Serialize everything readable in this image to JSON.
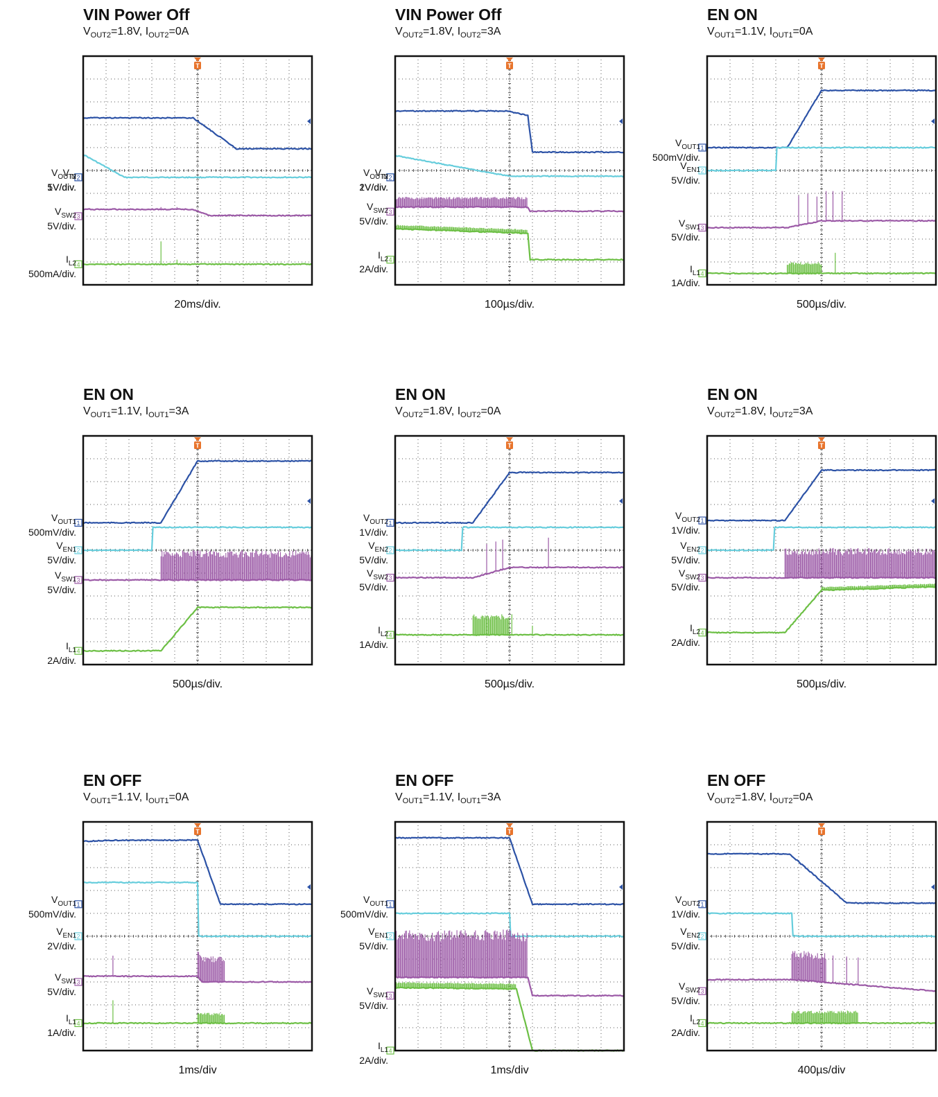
{
  "chart_data": [
    {
      "type": "line",
      "title": "VIN Power Off",
      "subtitle": [
        [
          "V",
          "OUT2",
          "=1.8V, "
        ],
        [
          "I",
          "OUT2",
          "=0A"
        ]
      ],
      "timebase": "20ms/div.",
      "trigger_marker": "T",
      "series": [
        {
          "channel": "1",
          "label": [
            "V",
            "OUT2"
          ],
          "scale": "1V/div.",
          "color": "#66cddc",
          "ref": 5.3,
          "x": [
            0,
            1.8,
            10
          ],
          "y": [
            1.0,
            0.0,
            0.0
          ]
        },
        {
          "channel": "2",
          "label": [
            "V",
            "IN"
          ],
          "scale": "5V/div.",
          "color": "#2c52a6",
          "ref": 5.3,
          "x": [
            0,
            4.8,
            6.7,
            10
          ],
          "y": [
            2.6,
            2.6,
            1.25,
            1.25
          ]
        },
        {
          "channel": "3",
          "label": [
            "V",
            "SW2"
          ],
          "scale": "5V/div.",
          "color": "#9b59a6",
          "ref": 7.0,
          "x": [
            0,
            4.8,
            5.5,
            10
          ],
          "y": [
            0.3,
            0.3,
            0.03,
            0.03
          ],
          "spikes": [
            [
              3.4,
              0.1
            ],
            [
              4.1,
              0.1
            ]
          ]
        },
        {
          "channel": "4",
          "label": [
            "I",
            "L2"
          ],
          "scale": "500mA/div.",
          "color": "#6cbf44",
          "ref": 9.1,
          "x": [
            0,
            10
          ],
          "y": [
            0,
            0
          ],
          "spikes": [
            [
              3.4,
              1.0
            ],
            [
              4.1,
              0.2
            ]
          ]
        }
      ]
    },
    {
      "type": "line",
      "title": "VIN Power Off",
      "subtitle": [
        [
          "V",
          "OUT2",
          "=1.8V, "
        ],
        [
          "I",
          "OUT2",
          "=3A"
        ]
      ],
      "timebase": "100µs/div.",
      "trigger_marker": "T",
      "series": [
        {
          "channel": "1",
          "label": [
            "V",
            "OUT2"
          ],
          "scale": "1V/div.",
          "color": "#66cddc",
          "ref": 5.3,
          "x": [
            0,
            5,
            10
          ],
          "y": [
            0.95,
            0.05,
            0.05
          ]
        },
        {
          "channel": "2",
          "label": [
            "V",
            "IN"
          ],
          "scale": "2V/div.",
          "color": "#2c52a6",
          "ref": 5.3,
          "x": [
            0,
            4.9,
            5.8,
            6,
            10
          ],
          "y": [
            2.9,
            2.9,
            2.7,
            1.1,
            1.1
          ]
        },
        {
          "channel": "3",
          "label": [
            "V",
            "SW2"
          ],
          "scale": "5V/div.",
          "color": "#9b59a6",
          "ref": 6.8,
          "x": [
            0,
            5.8,
            5.9,
            10
          ],
          "y": [
            0.2,
            0.2,
            0.02,
            0.02
          ],
          "noise_band": [
            0,
            5.8,
            0.45
          ]
        },
        {
          "channel": "4",
          "label": [
            "I",
            "L2"
          ],
          "scale": "2A/div.",
          "color": "#6cbf44",
          "ref": 8.9,
          "x": [
            0,
            4.4,
            5.8,
            5.9,
            10
          ],
          "y": [
            1.35,
            1.2,
            1.15,
            0.0,
            0.0
          ],
          "noise_band": [
            0,
            5.8,
            0.18
          ]
        }
      ]
    },
    {
      "type": "line",
      "title": "EN ON",
      "subtitle": [
        [
          "V",
          "OUT1",
          "=1.1V, "
        ],
        [
          "I",
          "OUT1",
          "=0A"
        ]
      ],
      "timebase": "500µs/div.",
      "trigger_marker": "T",
      "series": [
        {
          "channel": "1",
          "label": [
            "V",
            "OUT1"
          ],
          "scale": "500mV/div.",
          "color": "#2c52a6",
          "ref": 4.0,
          "x": [
            0,
            3.5,
            5,
            10
          ],
          "y": [
            0,
            0,
            2.5,
            2.5
          ]
        },
        {
          "channel": "2",
          "label": [
            "V",
            "EN1"
          ],
          "scale": "5V/div.",
          "color": "#66cddc",
          "ref": 5.0,
          "x": [
            0,
            3.0,
            3.05,
            10
          ],
          "y": [
            0,
            0,
            1.0,
            1.0
          ]
        },
        {
          "channel": "3",
          "label": [
            "V",
            "SW1"
          ],
          "scale": "5V/div.",
          "color": "#9b59a6",
          "ref": 7.5,
          "x": [
            0,
            3.5,
            5,
            10
          ],
          "y": [
            0,
            0,
            0.3,
            0.3
          ],
          "spikes": [
            [
              4.0,
              1.3
            ],
            [
              4.4,
              1.3
            ],
            [
              4.8,
              1.1
            ],
            [
              5.2,
              1.3
            ],
            [
              5.5,
              1.3
            ],
            [
              5.9,
              1.3
            ]
          ]
        },
        {
          "channel": "4",
          "label": [
            "I",
            "L1"
          ],
          "scale": "1A/div.",
          "color": "#6cbf44",
          "ref": 9.5,
          "x": [
            0,
            10
          ],
          "y": [
            0,
            0
          ],
          "noise_band": [
            3.5,
            5,
            0.5
          ],
          "spikes": [
            [
              5.6,
              0.9
            ]
          ]
        }
      ]
    },
    {
      "type": "line",
      "title": "EN ON",
      "subtitle": [
        [
          "V",
          "OUT1",
          "=1.1V, "
        ],
        [
          "I",
          "OUT1",
          "=3A"
        ]
      ],
      "timebase": "500µs/div.",
      "trigger_marker": "T",
      "series": [
        {
          "channel": "1",
          "label": [
            "V",
            "OUT1"
          ],
          "scale": "500mV/div.",
          "color": "#2c52a6",
          "ref": 3.8,
          "x": [
            0,
            3.4,
            5,
            10
          ],
          "y": [
            0,
            0,
            2.7,
            2.7
          ]
        },
        {
          "channel": "2",
          "label": [
            "V",
            "EN1"
          ],
          "scale": "5V/div.",
          "color": "#66cddc",
          "ref": 5.0,
          "x": [
            0,
            3.0,
            3.05,
            10
          ],
          "y": [
            0,
            0,
            1.0,
            1.0
          ]
        },
        {
          "channel": "3",
          "label": [
            "V",
            "SW1"
          ],
          "scale": "5V/div.",
          "color": "#9b59a6",
          "ref": 6.3,
          "x": [
            0,
            10
          ],
          "y": [
            0,
            0
          ],
          "noise_band": [
            3.4,
            10,
            1.3
          ]
        },
        {
          "channel": "4",
          "label": [
            "I",
            "L1"
          ],
          "scale": "2A/div.",
          "color": "#6cbf44",
          "ref": 9.4,
          "x": [
            0,
            3.4,
            5,
            10
          ],
          "y": [
            0,
            0,
            1.9,
            1.9
          ]
        }
      ]
    },
    {
      "type": "line",
      "title": "EN ON",
      "subtitle": [
        [
          "V",
          "OUT2",
          "=1.8V, "
        ],
        [
          "I",
          "OUT2",
          "=0A"
        ]
      ],
      "timebase": "500µs/div.",
      "trigger_marker": "T",
      "series": [
        {
          "channel": "1",
          "label": [
            "V",
            "OUT2"
          ],
          "scale": "1V/div.",
          "color": "#2c52a6",
          "ref": 3.8,
          "x": [
            0,
            3.4,
            5,
            10
          ],
          "y": [
            0,
            0,
            2.2,
            2.2
          ]
        },
        {
          "channel": "2",
          "label": [
            "V",
            "EN2"
          ],
          "scale": "5V/div.",
          "color": "#66cddc",
          "ref": 5.0,
          "x": [
            0,
            2.9,
            2.95,
            10
          ],
          "y": [
            0,
            0,
            1.0,
            1.0
          ]
        },
        {
          "channel": "3",
          "label": [
            "V",
            "SW2"
          ],
          "scale": "5V/div.",
          "color": "#9b59a6",
          "ref": 6.2,
          "x": [
            0,
            3.4,
            5,
            10
          ],
          "y": [
            0,
            0,
            0.45,
            0.45
          ],
          "spikes": [
            [
              4.0,
              1.3
            ],
            [
              4.4,
              1.3
            ],
            [
              4.7,
              1.3
            ],
            [
              6.7,
              1.3
            ]
          ]
        },
        {
          "channel": "4",
          "label": [
            "I",
            "L2"
          ],
          "scale": "1A/div.",
          "color": "#6cbf44",
          "ref": 8.7,
          "x": [
            0,
            10
          ],
          "y": [
            0,
            0
          ],
          "noise_band": [
            3.4,
            5,
            0.9
          ],
          "spikes": [
            [
              5.1,
              0.9
            ],
            [
              6.0,
              0.4
            ]
          ]
        }
      ]
    },
    {
      "type": "line",
      "title": "EN ON",
      "subtitle": [
        [
          "V",
          "OUT2",
          "=1.8V, "
        ],
        [
          "I",
          "OUT2",
          "=3A"
        ]
      ],
      "timebase": "500µs/div.",
      "trigger_marker": "T",
      "series": [
        {
          "channel": "1",
          "label": [
            "V",
            "OUT2"
          ],
          "scale": "1V/div.",
          "color": "#2c52a6",
          "ref": 3.7,
          "x": [
            0,
            3.4,
            5,
            10
          ],
          "y": [
            0,
            0,
            2.2,
            2.2
          ]
        },
        {
          "channel": "2",
          "label": [
            "V",
            "EN2"
          ],
          "scale": "5V/div.",
          "color": "#66cddc",
          "ref": 5.0,
          "x": [
            0,
            2.9,
            2.95,
            10
          ],
          "y": [
            0,
            0,
            1.0,
            1.0
          ]
        },
        {
          "channel": "3",
          "label": [
            "V",
            "SW2"
          ],
          "scale": "5V/div.",
          "color": "#9b59a6",
          "ref": 6.2,
          "x": [
            0,
            10
          ],
          "y": [
            0,
            0
          ],
          "noise_band": [
            3.4,
            10,
            1.3
          ]
        },
        {
          "channel": "4",
          "label": [
            "I",
            "L2"
          ],
          "scale": "2A/div.",
          "color": "#6cbf44",
          "ref": 8.6,
          "x": [
            0,
            3.4,
            5,
            10
          ],
          "y": [
            0,
            0,
            1.85,
            2.0
          ],
          "noise_band": [
            5,
            10,
            0.15
          ]
        }
      ]
    },
    {
      "type": "line",
      "title": "EN OFF",
      "subtitle": [
        [
          "V",
          "OUT1",
          "=1.1V, "
        ],
        [
          "I",
          "OUT1",
          "=0A"
        ]
      ],
      "timebase": "1ms/div",
      "trigger_marker": "T",
      "series": [
        {
          "channel": "1",
          "label": [
            "V",
            "OUT1"
          ],
          "scale": "500mV/div.",
          "color": "#2c52a6",
          "ref": 3.6,
          "x": [
            0,
            1.4,
            5,
            6,
            10
          ],
          "y": [
            2.75,
            2.8,
            2.8,
            0,
            0
          ]
        },
        {
          "channel": "2",
          "label": [
            "V",
            "EN1"
          ],
          "scale": "2V/div.",
          "color": "#66cddc",
          "ref": 5.0,
          "x": [
            0,
            5,
            5.05,
            10
          ],
          "y": [
            2.35,
            2.35,
            0,
            0
          ]
        },
        {
          "channel": "3",
          "label": [
            "V",
            "SW1"
          ],
          "scale": "5V/div.",
          "color": "#9b59a6",
          "ref": 7.0,
          "x": [
            0,
            5,
            5.2,
            10
          ],
          "y": [
            0.25,
            0.25,
            0,
            0
          ],
          "noise_band": [
            5,
            6.2,
            1.15
          ],
          "spikes": [
            [
              1.3,
              0.9
            ]
          ]
        },
        {
          "channel": "4",
          "label": [
            "I",
            "L1"
          ],
          "scale": "1A/div.",
          "color": "#6cbf44",
          "ref": 8.8,
          "x": [
            0,
            10
          ],
          "y": [
            0,
            0
          ],
          "noise_band": [
            5,
            6.2,
            0.45
          ],
          "spikes": [
            [
              1.3,
              1.0
            ]
          ]
        }
      ]
    },
    {
      "type": "line",
      "title": "EN OFF",
      "subtitle": [
        [
          "V",
          "OUT1",
          "=1.1V, "
        ],
        [
          "I",
          "OUT1",
          "=3A"
        ]
      ],
      "timebase": "1ms/div",
      "trigger_marker": "T",
      "series": [
        {
          "channel": "1",
          "label": [
            "V",
            "OUT1"
          ],
          "scale": "500mV/div.",
          "color": "#2c52a6",
          "ref": 3.6,
          "x": [
            0,
            5,
            6,
            10
          ],
          "y": [
            2.9,
            2.9,
            0,
            0
          ]
        },
        {
          "channel": "2",
          "label": [
            "V",
            "EN1"
          ],
          "scale": "5V/div.",
          "color": "#66cddc",
          "ref": 5.0,
          "x": [
            0,
            5,
            5.05,
            10
          ],
          "y": [
            1.0,
            1.0,
            0,
            0
          ]
        },
        {
          "channel": "3",
          "label": [
            "V",
            "SW1"
          ],
          "scale": "5V/div.",
          "color": "#9b59a6",
          "ref": 7.6,
          "x": [
            0,
            5.8,
            6,
            10
          ],
          "y": [
            0.8,
            0.8,
            0,
            0
          ],
          "noise_band": [
            0,
            5.8,
            2.1
          ]
        },
        {
          "channel": "4",
          "label": [
            "I",
            "L1"
          ],
          "scale": "2A/div.",
          "color": "#6cbf44",
          "ref": 10.0,
          "x": [
            0,
            5.3,
            6,
            10
          ],
          "y": [
            2.75,
            2.7,
            0,
            0
          ],
          "noise_band": [
            0,
            5.3,
            0.25
          ]
        }
      ]
    },
    {
      "type": "line",
      "title": "EN OFF",
      "subtitle": [
        [
          "V",
          "OUT2",
          "=1.8V, "
        ],
        [
          "I",
          "OUT2",
          "=0A"
        ]
      ],
      "timebase": "400µs/div",
      "trigger_marker": "T",
      "series": [
        {
          "channel": "1",
          "label": [
            "V",
            "OUT2"
          ],
          "scale": "1V/div.",
          "color": "#2c52a6",
          "ref": 3.6,
          "x": [
            0,
            3.6,
            6.1,
            10
          ],
          "y": [
            2.2,
            2.2,
            0.05,
            0.05
          ]
        },
        {
          "channel": "2",
          "label": [
            "V",
            "EN2"
          ],
          "scale": "5V/div.",
          "color": "#66cddc",
          "ref": 5.0,
          "x": [
            0,
            3.7,
            3.75,
            10
          ],
          "y": [
            1.0,
            1.0,
            0,
            0
          ]
        },
        {
          "channel": "3",
          "label": [
            "V",
            "SW2"
          ],
          "scale": "5V/div.",
          "color": "#9b59a6",
          "ref": 7.4,
          "x": [
            0,
            3.7,
            10
          ],
          "y": [
            0.5,
            0.5,
            0
          ],
          "noise_band": [
            3.7,
            5.2,
            1.3
          ],
          "spikes": [
            [
              5.5,
              1.2
            ],
            [
              6.1,
              1.2
            ],
            [
              6.6,
              1.2
            ]
          ]
        },
        {
          "channel": "4",
          "label": [
            "I",
            "L2"
          ],
          "scale": "2A/div.",
          "color": "#6cbf44",
          "ref": 8.8,
          "x": [
            0,
            10
          ],
          "y": [
            0,
            0
          ],
          "noise_band": [
            3.7,
            6.6,
            0.55
          ]
        }
      ]
    }
  ]
}
